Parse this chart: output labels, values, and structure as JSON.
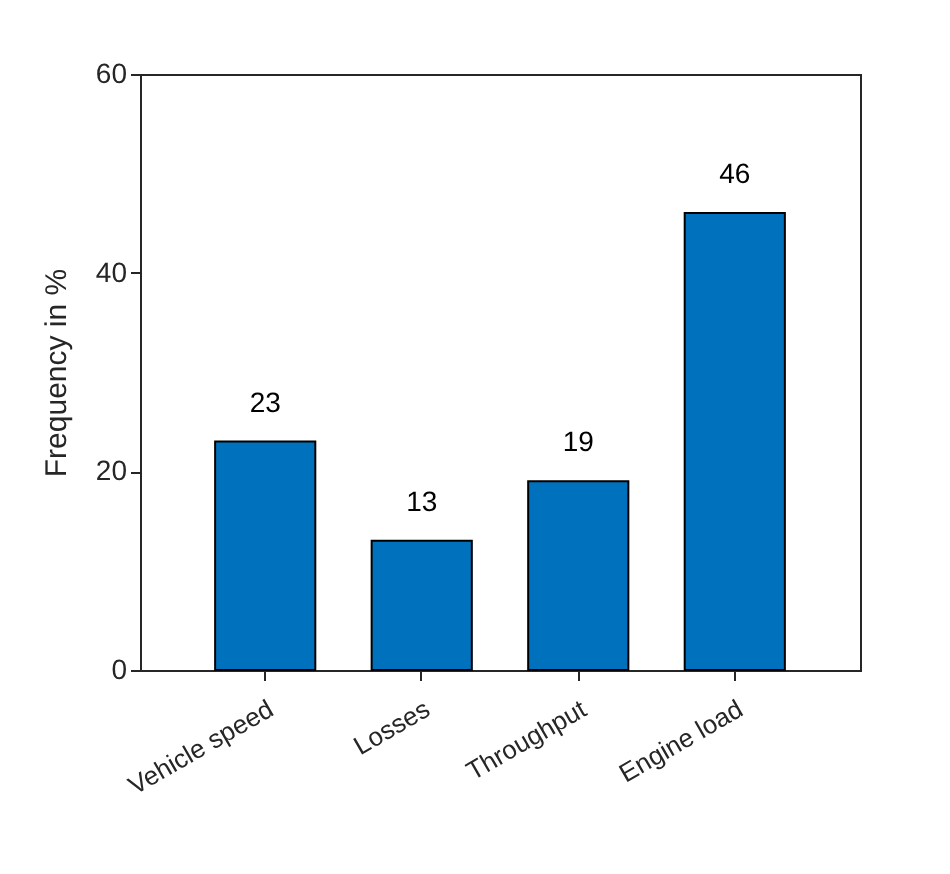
{
  "chart_data": {
    "type": "bar",
    "ylabel": "Frequency in %",
    "categories": [
      "Vehicle speed",
      "Losses",
      "Throughput",
      "Engine load"
    ],
    "values": [
      23,
      13,
      19,
      46
    ],
    "color": "#0072bd",
    "ylim": [
      0,
      60
    ],
    "yticks": [
      0,
      20,
      40,
      60
    ],
    "grid": false,
    "data_labels": true
  }
}
